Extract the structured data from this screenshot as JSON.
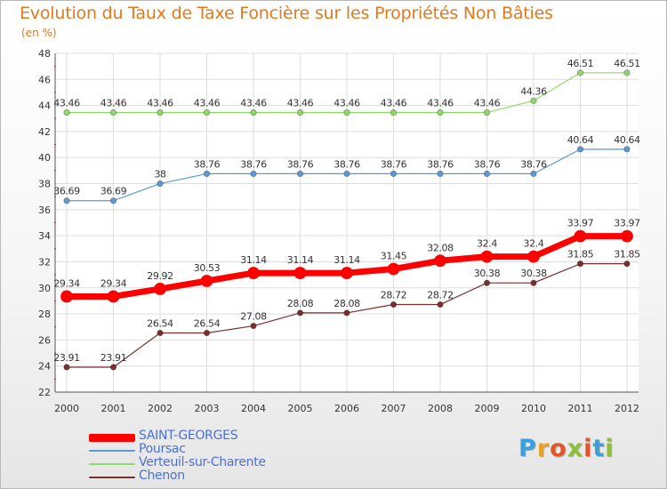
{
  "title": "Evolution du Taux de Taxe Foncière sur les Propriétés Non Bâties",
  "subtitle": "(en %)",
  "logo": {
    "text": "Proxiti",
    "letters": [
      "P",
      "r",
      "o",
      "x",
      "i",
      "t",
      "i"
    ],
    "colors": [
      "#3aa0dc",
      "#e8a22a",
      "#e0552a",
      "#8cbf3a",
      "#e0552a",
      "#3aa0dc",
      "#8cbf3a"
    ]
  },
  "chart_data": {
    "type": "line",
    "title": "Evolution du Taux de Taxe Foncière sur les Propriétés Non Bâties",
    "ylabel": "(en %)",
    "x": [
      "2000",
      "2001",
      "2002",
      "2003",
      "2004",
      "2005",
      "2006",
      "2007",
      "2008",
      "2009",
      "2010",
      "2011",
      "2012"
    ],
    "ylim": [
      22,
      48
    ],
    "yticks": [
      "22",
      "24",
      "26",
      "28",
      "30",
      "32",
      "34",
      "36",
      "38",
      "40",
      "42",
      "44",
      "46",
      "48"
    ],
    "grid": true,
    "legend_position": "bottom-left",
    "series": [
      {
        "name": "SAINT-GEORGES",
        "color": "#ff0000",
        "emphasis": true,
        "values": [
          29.34,
          29.34,
          29.92,
          30.53,
          31.14,
          31.14,
          31.14,
          31.45,
          32.08,
          32.4,
          32.4,
          33.97,
          33.97
        ],
        "labels": [
          "29.34",
          "29.34",
          "29.92",
          "30.53",
          "31.14",
          "31.14",
          "31.14",
          "31.45",
          "32.08",
          "32.4",
          "32.4",
          "33.97",
          "33.97"
        ]
      },
      {
        "name": "Poursac",
        "color": "#5b9bd5",
        "values": [
          36.69,
          36.69,
          38,
          38.76,
          38.76,
          38.76,
          38.76,
          38.76,
          38.76,
          38.76,
          38.76,
          40.64,
          40.64
        ],
        "labels": [
          "36.69",
          "36.69",
          "38",
          "38.76",
          "38.76",
          "38.76",
          "38.76",
          "38.76",
          "38.76",
          "38.76",
          "38.76",
          "40.64",
          "40.64"
        ]
      },
      {
        "name": "Verteuil-sur-Charente",
        "color": "#8fd96a",
        "values": [
          43.46,
          43.46,
          43.46,
          43.46,
          43.46,
          43.46,
          43.46,
          43.46,
          43.46,
          43.46,
          44.36,
          46.51,
          46.51
        ],
        "labels": [
          "43.46",
          "43.46",
          "43.46",
          "43.46",
          "43.46",
          "43.46",
          "43.46",
          "43.46",
          "43.46",
          "43.46",
          "44.36",
          "46.51",
          "46.51"
        ]
      },
      {
        "name": "Chenon",
        "color": "#7a2f2f",
        "values": [
          23.91,
          23.91,
          26.54,
          26.54,
          27.08,
          28.08,
          28.08,
          28.72,
          28.72,
          30.38,
          30.38,
          31.85,
          31.85
        ],
        "labels": [
          "23.91",
          "23.91",
          "26.54",
          "26.54",
          "27.08",
          "28.08",
          "28.08",
          "28.72",
          "28.72",
          "30.38",
          "30.38",
          "31.85",
          "31.85"
        ]
      }
    ]
  }
}
